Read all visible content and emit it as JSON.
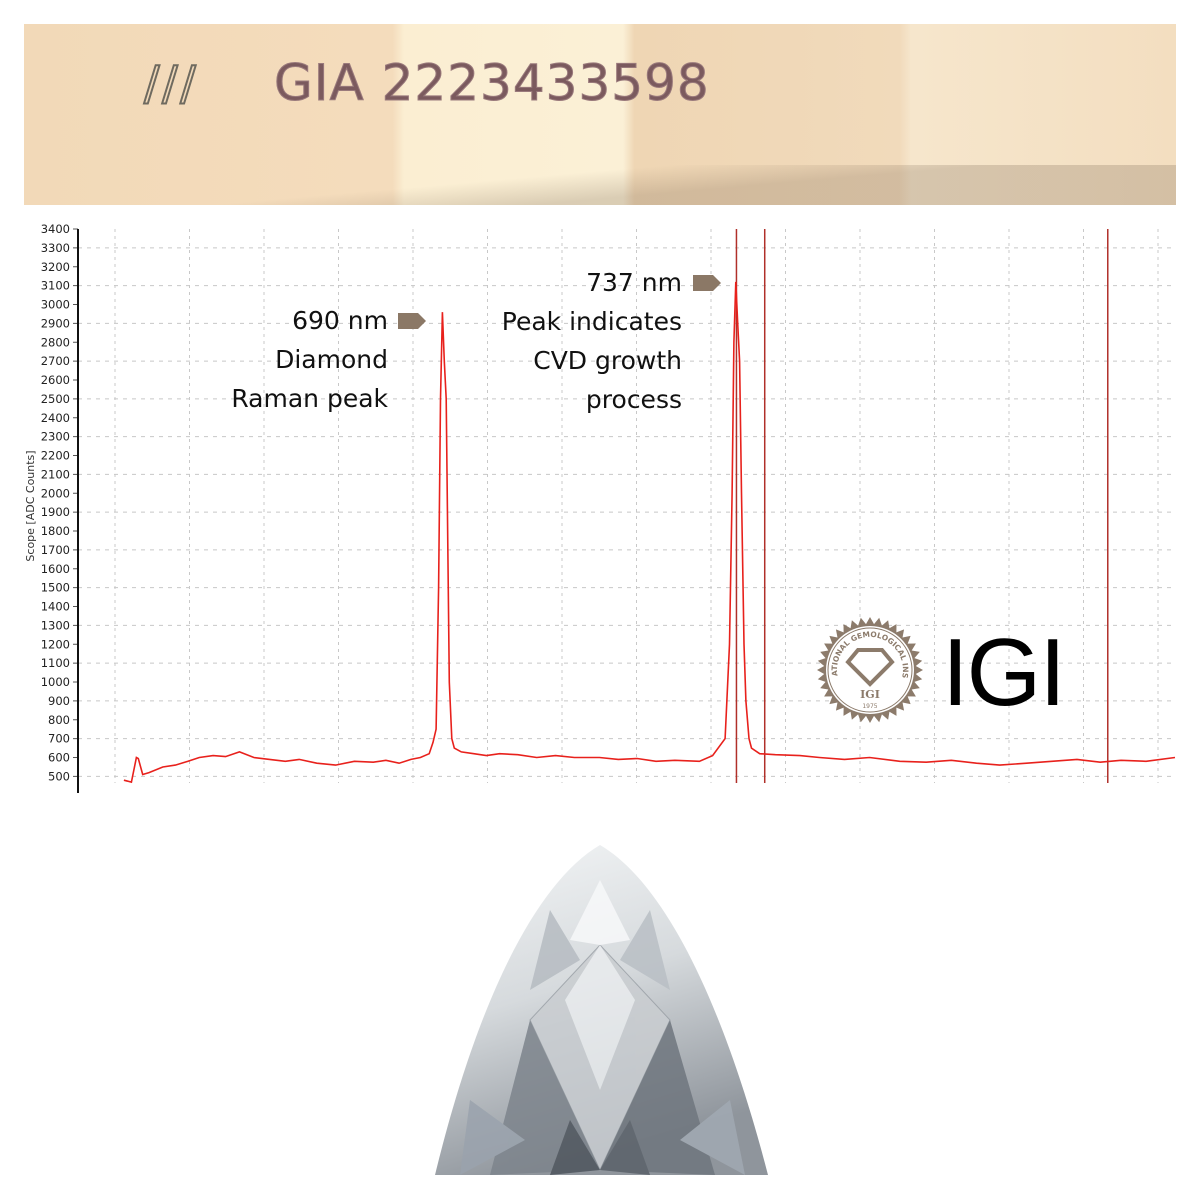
{
  "inscription_photo": {
    "text": "GIA 2223433598",
    "colors": {
      "paper": "#f4dcbc",
      "ink": "#7b5a5e"
    }
  },
  "annotations": [
    {
      "label": "690 nm",
      "lines": [
        "Diamond",
        "Raman peak"
      ]
    },
    {
      "label": "737 nm",
      "lines": [
        "Peak indicates",
        "CVD growth",
        "process"
      ]
    }
  ],
  "logo": {
    "wordmark": "IGI",
    "seal_text": "INTERNATIONAL GEMOLOGICAL INSTITUTE",
    "seal_monogram": "IGI",
    "seal_year": "1975",
    "color": "#8c7b6b"
  },
  "chart_data": {
    "type": "line",
    "title": "",
    "xlabel": "",
    "ylabel": "Scope [ADC Counts]",
    "xunit": "nm",
    "xlim": [
      632,
      806.6
    ],
    "ylim": [
      465,
      3400
    ],
    "yticks": [
      500,
      600,
      700,
      800,
      900,
      1000,
      1100,
      1200,
      1300,
      1400,
      1500,
      1600,
      1700,
      1800,
      1900,
      2000,
      2100,
      2200,
      2300,
      2400,
      2500,
      2600,
      2700,
      2800,
      2900,
      3000,
      3100,
      3200,
      3300,
      3400
    ],
    "grid": true,
    "line_color": "#e8211c",
    "marker_lines_nm": [
      736.8,
      741.3,
      795.9
    ],
    "series": [
      {
        "x": [
          639.3,
          640.5,
          641.3,
          641.6,
          642.3,
          643.3,
          645.5,
          647.5,
          649.5,
          651.3,
          653.5,
          655.5,
          657.7,
          660,
          662.5,
          665,
          667.2,
          670,
          673,
          676,
          679,
          681,
          683.1,
          685,
          686.5,
          687.9,
          688.5,
          689.0,
          689.4,
          689.7,
          690.0,
          690.3,
          690.6,
          691.1,
          691.5,
          691.9,
          693,
          695,
          697,
          699.1,
          702,
          705,
          708,
          711,
          715.0,
          718,
          721,
          724,
          727,
          730.9,
          733,
          735,
          735.7,
          736.1,
          736.4,
          736.7,
          737.0,
          737.3,
          737.6,
          738.0,
          738.3,
          738.8,
          739.2,
          740.5,
          743,
          746.9,
          750,
          754,
          758,
          762.8,
          767,
          771,
          775,
          778.7,
          783,
          787,
          791,
          794.7,
          798,
          802,
          806.6
        ],
        "y": [
          480,
          470,
          600,
          595,
          510,
          520,
          550,
          560,
          580,
          600,
          610,
          605,
          630,
          600,
          590,
          580,
          590,
          570,
          560,
          580,
          575,
          585,
          570,
          590,
          600,
          620,
          680,
          750,
          1500,
          2500,
          2960,
          2700,
          2500,
          1000,
          700,
          650,
          630,
          620,
          610,
          620,
          615,
          600,
          610,
          600,
          600,
          590,
          595,
          580,
          585,
          580,
          610,
          700,
          1200,
          2000,
          2800,
          3120,
          2900,
          2700,
          2000,
          1200,
          900,
          700,
          650,
          620,
          615,
          610,
          600,
          590,
          600,
          580,
          575,
          585,
          570,
          560,
          570,
          580,
          590,
          575,
          585,
          580,
          600
        ]
      }
    ]
  }
}
